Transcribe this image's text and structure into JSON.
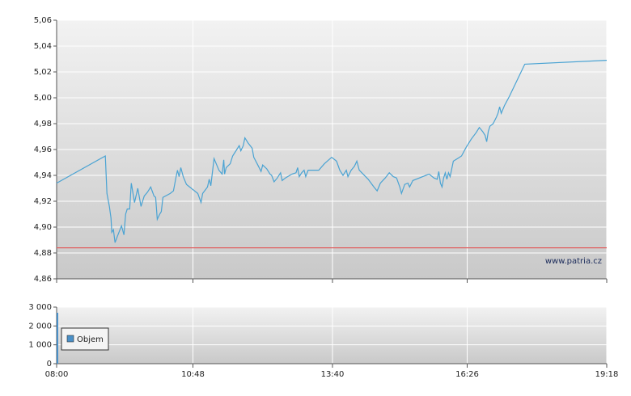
{
  "chart_data": [
    {
      "type": "line",
      "color": "#4aa3d3",
      "watermark": "www.patria.cz",
      "reference_line": {
        "value": 4.884,
        "color": "#e06060"
      },
      "ylim": [
        4.86,
        5.06
      ],
      "yticks": [
        {
          "value": 4.86,
          "label": "4,86"
        },
        {
          "value": 4.88,
          "label": "4,88"
        },
        {
          "value": 4.9,
          "label": "4,90"
        },
        {
          "value": 4.92,
          "label": "4,92"
        },
        {
          "value": 4.94,
          "label": "4,94"
        },
        {
          "value": 4.96,
          "label": "4,96"
        },
        {
          "value": 4.98,
          "label": "4,98"
        },
        {
          "value": 5.0,
          "label": "5,00"
        },
        {
          "value": 5.02,
          "label": "5,02"
        },
        {
          "value": 5.04,
          "label": "5,04"
        },
        {
          "value": 5.06,
          "label": "5,06"
        }
      ],
      "grid": true,
      "x": [
        "08:00",
        "09:00",
        "09:02",
        "09:05",
        "09:07",
        "09:08",
        "09:10",
        "09:12",
        "09:15",
        "09:20",
        "09:23",
        "09:25",
        "09:27",
        "09:30",
        "09:32",
        "09:36",
        "09:40",
        "09:44",
        "09:48",
        "09:52",
        "09:56",
        "10:00",
        "10:02",
        "10:04",
        "10:07",
        "10:09",
        "10:11",
        "10:20",
        "10:24",
        "10:27",
        "10:29",
        "10:31",
        "10:33",
        "10:36",
        "10:40",
        "10:54",
        "10:58",
        "11:00",
        "11:06",
        "11:08",
        "11:10",
        "11:14",
        "11:20",
        "11:24",
        "11:26",
        "11:27",
        "11:29",
        "11:34",
        "11:37",
        "11:42",
        "11:45",
        "11:47",
        "11:50",
        "11:52",
        "11:56",
        "12:01",
        "12:03",
        "12:08",
        "12:12",
        "12:14",
        "12:19",
        "12:23",
        "12:25",
        "12:28",
        "12:32",
        "12:36",
        "12:38",
        "12:42",
        "12:50",
        "12:55",
        "12:57",
        "12:59",
        "13:02",
        "13:05",
        "13:07",
        "13:10",
        "13:23",
        "13:30",
        "13:39",
        "13:45",
        "13:49",
        "13:53",
        "13:57",
        "13:59",
        "14:03",
        "14:07",
        "14:10",
        "14:13",
        "14:24",
        "14:31",
        "14:35",
        "14:39",
        "14:45",
        "14:50",
        "14:55",
        "14:59",
        "15:03",
        "15:05",
        "15:09",
        "15:13",
        "15:15",
        "15:19",
        "15:39",
        "15:45",
        "15:49",
        "15:51",
        "15:53",
        "15:55",
        "15:57",
        "15:59",
        "16:01",
        "16:03",
        "16:05",
        "16:09",
        "16:14",
        "16:19",
        "16:25",
        "16:31",
        "16:37",
        "16:41",
        "16:45",
        "16:48",
        "16:50",
        "16:52",
        "16:54",
        "16:58",
        "17:02",
        "17:04",
        "17:06",
        "17:08",
        "17:12",
        "17:18",
        "17:37",
        "19:18"
      ],
      "values": [
        4.934,
        4.955,
        4.926,
        4.916,
        4.907,
        4.896,
        4.898,
        4.888,
        4.893,
        4.901,
        4.894,
        4.91,
        4.914,
        4.914,
        4.934,
        4.919,
        4.93,
        4.916,
        4.924,
        4.927,
        4.931,
        4.924,
        4.923,
        4.906,
        4.91,
        4.912,
        4.923,
        4.926,
        4.928,
        4.938,
        4.944,
        4.939,
        4.946,
        4.939,
        4.933,
        4.926,
        4.919,
        4.926,
        4.931,
        4.937,
        4.932,
        4.953,
        4.944,
        4.941,
        4.952,
        4.941,
        4.946,
        4.949,
        4.955,
        4.96,
        4.963,
        4.959,
        4.963,
        4.969,
        4.965,
        4.961,
        4.954,
        4.948,
        4.943,
        4.948,
        4.945,
        4.941,
        4.94,
        4.935,
        4.938,
        4.942,
        4.936,
        4.938,
        4.941,
        4.942,
        4.946,
        4.939,
        4.942,
        4.944,
        4.939,
        4.944,
        4.944,
        4.949,
        4.954,
        4.951,
        4.944,
        4.94,
        4.944,
        4.939,
        4.944,
        4.947,
        4.951,
        4.944,
        4.937,
        4.931,
        4.928,
        4.934,
        4.938,
        4.942,
        4.939,
        4.938,
        4.931,
        4.926,
        4.933,
        4.934,
        4.931,
        4.936,
        4.941,
        4.938,
        4.937,
        4.943,
        4.934,
        4.931,
        4.938,
        4.942,
        4.937,
        4.942,
        4.939,
        4.951,
        4.953,
        4.955,
        4.962,
        4.968,
        4.973,
        4.977,
        4.974,
        4.971,
        4.966,
        4.974,
        4.978,
        4.98,
        4.985,
        4.988,
        4.993,
        4.988,
        4.994,
        5.001,
        5.026,
        5.029
      ]
    },
    {
      "type": "bar",
      "legend": "upper left",
      "xlim": [
        "08:00",
        "19:18"
      ],
      "xticks": [
        "08:00",
        "10:48",
        "13:40",
        "16:26",
        "19:18"
      ],
      "ylim": [
        0,
        3000
      ],
      "yticks": [
        0,
        {
          "value": 1000,
          "label": "1 000"
        },
        {
          "value": 2000,
          "label": "2 000"
        },
        {
          "value": 3000,
          "label": "3 000"
        }
      ],
      "grid": true,
      "x": [
        "08:00"
      ],
      "series": [
        {
          "name": "Objem",
          "color": "#4a90c8",
          "values": [
            2700
          ]
        }
      ]
    }
  ]
}
